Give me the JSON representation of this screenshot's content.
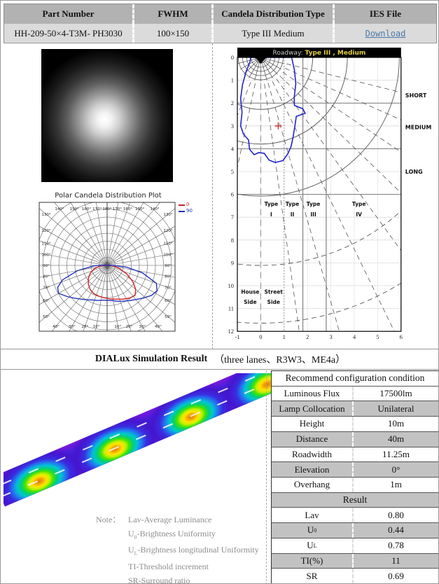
{
  "top_table": {
    "headers": [
      "Part Number",
      "FWHM",
      "Candela Distribution Type",
      "IES File"
    ],
    "row": {
      "part_number": "HH-209-50×4-T3M- PH3030",
      "fwhm": "100×150",
      "distribution_type": "Type III Medium",
      "ies_file_link": "Download"
    }
  },
  "dialux": {
    "title": "DIALux Simulation Result",
    "subtitle": "（three lanes、R3W3、ME4a）"
  },
  "polar_section": {
    "title": "Polar Candela Distribution Plot",
    "legend": [
      {
        "label": "0",
        "color": "#cc2222"
      },
      {
        "label": "90",
        "color": "#2233bb"
      }
    ]
  },
  "config_table": {
    "header": "Recommend configuration condition",
    "rows": [
      {
        "label": "Luminous Flux",
        "value": "17500lm"
      },
      {
        "label": "Lamp Collocation",
        "value": "Unilateral"
      },
      {
        "label": "Height",
        "value": "10m"
      },
      {
        "label": "Distance",
        "value": "40m"
      },
      {
        "label": "Roadwidth",
        "value": "11.25m"
      },
      {
        "label": "Elevation",
        "value": "0°"
      },
      {
        "label": "Overhang",
        "value": "1m"
      }
    ],
    "result_header": "Result",
    "result_rows": [
      {
        "label": "Lav",
        "value": "0.80"
      },
      {
        "label": "U",
        "sub": "0",
        "value": "0.44"
      },
      {
        "label": "U",
        "sub": "L",
        "value": "0.78"
      },
      {
        "label": "TI(%)",
        "value": "11"
      },
      {
        "label": "SR",
        "value": "0.69"
      }
    ]
  },
  "notes": {
    "label": "Note：",
    "lines": [
      {
        "pre": "Lav",
        "post": "-Average Luminance"
      },
      {
        "pre": "U",
        "sub": "0",
        "post": "-Brightness Uniformity"
      },
      {
        "pre": "U",
        "sub": "L",
        "post": "-Brightness longitudinal Uniformity"
      },
      {
        "pre": "TI",
        "post": "-Threshold increment"
      },
      {
        "pre": "SR",
        "post": "-Surround ratio"
      }
    ]
  },
  "chart_data": {
    "polar": {
      "type": "line",
      "title": "Polar Candela Distribution Plot",
      "angle_labels": [
        10,
        20,
        30,
        40,
        50,
        60,
        70,
        80,
        90,
        100,
        110,
        120,
        130,
        140,
        150,
        160,
        170,
        180
      ],
      "series": [
        {
          "name": "0",
          "color": "#cc2222",
          "points": [
            [
              -95,
              0.03
            ],
            [
              -85,
              0.12
            ],
            [
              -75,
              0.22
            ],
            [
              -65,
              0.31
            ],
            [
              -55,
              0.38
            ],
            [
              -45,
              0.44
            ],
            [
              -35,
              0.49
            ],
            [
              -25,
              0.52
            ],
            [
              -15,
              0.53
            ],
            [
              -5,
              0.54
            ],
            [
              5,
              0.56
            ],
            [
              15,
              0.58
            ],
            [
              25,
              0.62
            ],
            [
              35,
              0.66
            ],
            [
              43,
              0.68
            ],
            [
              50,
              0.62
            ],
            [
              58,
              0.5
            ],
            [
              66,
              0.36
            ],
            [
              75,
              0.22
            ],
            [
              85,
              0.1
            ],
            [
              93,
              0.03
            ]
          ]
        },
        {
          "name": "90",
          "color": "#2233bb",
          "points": [
            [
              -96,
              0.04
            ],
            [
              -88,
              0.22
            ],
            [
              -80,
              0.5
            ],
            [
              -72,
              0.78
            ],
            [
              -66,
              0.9
            ],
            [
              -60,
              0.93
            ],
            [
              -52,
              0.84
            ],
            [
              -45,
              0.77
            ],
            [
              -38,
              0.71
            ],
            [
              -30,
              0.66
            ],
            [
              -22,
              0.62
            ],
            [
              -14,
              0.6
            ],
            [
              -6,
              0.58
            ],
            [
              0,
              0.58
            ],
            [
              8,
              0.59
            ],
            [
              16,
              0.62
            ],
            [
              24,
              0.65
            ],
            [
              32,
              0.69
            ],
            [
              40,
              0.74
            ],
            [
              48,
              0.81
            ],
            [
              56,
              0.89
            ],
            [
              63,
              0.93
            ],
            [
              70,
              0.87
            ],
            [
              78,
              0.6
            ],
            [
              85,
              0.32
            ],
            [
              92,
              0.06
            ]
          ]
        }
      ]
    },
    "ies_roadway": {
      "type": "line",
      "title_prefix": "Roadway:",
      "title_value": "Type III , Medium",
      "x_ticks": [
        -1,
        0,
        1,
        2,
        3,
        4,
        5,
        6
      ],
      "y_ticks": [
        0,
        1,
        2,
        3,
        4,
        5,
        6,
        7,
        8,
        9,
        10,
        11,
        12
      ],
      "range_labels": [
        {
          "label": "SHORT",
          "v": 1.65
        },
        {
          "label": "MEDIUM",
          "v": 3.05
        },
        {
          "label": "LONG",
          "v": 5.0
        }
      ],
      "type_labels": [
        {
          "line1": "Type",
          "line2": "I",
          "u": 0.45
        },
        {
          "line1": "Type",
          "line2": "II",
          "u": 1.35
        },
        {
          "line1": "Type",
          "line2": "III",
          "u": 2.25
        },
        {
          "line1": "Type",
          "line2": "IV",
          "u": 4.2
        }
      ],
      "side_labels": [
        {
          "line1": "House",
          "line2": "Side",
          "u": -0.45
        },
        {
          "line1": "Street",
          "line2": "Side",
          "u": 0.55
        }
      ],
      "contour_color": "#2222cc",
      "marker": [
        0.75,
        3.0
      ],
      "contour": [
        [
          1.32,
          0
        ],
        [
          1.44,
          0.55
        ],
        [
          1.5,
          1.15
        ],
        [
          1.43,
          1.75
        ],
        [
          1.44,
          2.1
        ],
        [
          1.8,
          2.25
        ],
        [
          1.9,
          2.45
        ],
        [
          1.52,
          2.58
        ],
        [
          1.46,
          3.0
        ],
        [
          1.38,
          3.5
        ],
        [
          1.3,
          3.9
        ],
        [
          1.16,
          4.22
        ],
        [
          0.95,
          4.52
        ],
        [
          0.62,
          4.6
        ],
        [
          0.36,
          4.5
        ],
        [
          0.15,
          4.2
        ],
        [
          -0.08,
          4.17
        ],
        [
          -0.28,
          4.26
        ],
        [
          -0.48,
          4.02
        ],
        [
          -0.52,
          3.62
        ],
        [
          -0.74,
          3.36
        ],
        [
          -0.86,
          3.0
        ],
        [
          -0.8,
          2.4
        ],
        [
          -0.86,
          1.8
        ],
        [
          -0.78,
          1.2
        ],
        [
          -0.62,
          0.6
        ],
        [
          -0.46,
          0.2
        ],
        [
          -0.43,
          0
        ]
      ]
    }
  }
}
